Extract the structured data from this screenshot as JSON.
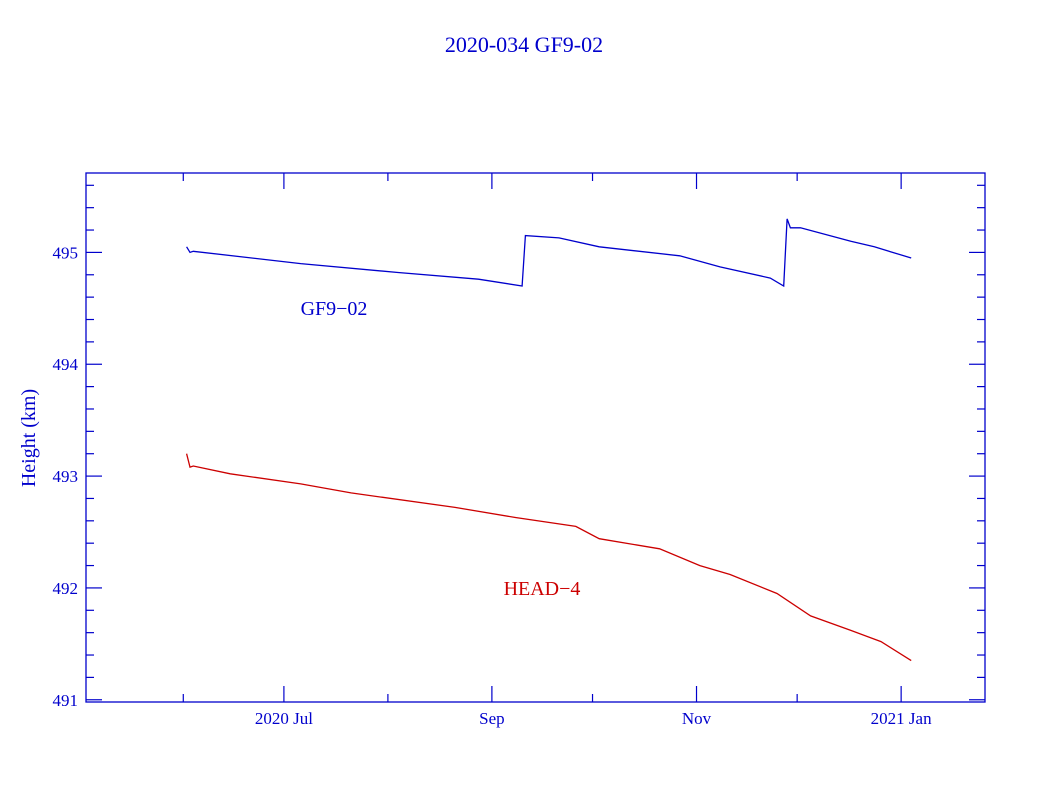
{
  "chart_data": {
    "type": "line",
    "title": "2020-034 GF9-02",
    "xlabel": "",
    "ylabel": "Height (km)",
    "xlim": [
      "2020-05-03",
      "2021-01-26"
    ],
    "ylim": [
      490.98,
      495.71
    ],
    "grid": false,
    "x_ticks": [
      {
        "date": "2020-07-01",
        "label": "2020 Jul"
      },
      {
        "date": "2020-09-01",
        "label": "Sep"
      },
      {
        "date": "2020-11-01",
        "label": "Nov"
      },
      {
        "date": "2021-01-01",
        "label": "2021 Jan"
      }
    ],
    "x_minor_ticks": [
      "2020-06-01",
      "2020-08-01",
      "2020-10-01",
      "2020-12-01"
    ],
    "y_ticks": [
      491,
      492,
      493,
      494,
      495
    ],
    "y_minor_step": 0.2,
    "colors": {
      "axis": "#0000cc",
      "gf9": "#0000cc",
      "head": "#cc0000"
    },
    "series": [
      {
        "name": "GF9-02",
        "label": "GF9−02",
        "color": "#0000cc",
        "points": [
          [
            "2020-06-02",
            495.05
          ],
          [
            "2020-06-03",
            495.0
          ],
          [
            "2020-06-04",
            495.01
          ],
          [
            "2020-07-06",
            494.9
          ],
          [
            "2020-08-04",
            494.82
          ],
          [
            "2020-08-28",
            494.76
          ],
          [
            "2020-09-10",
            494.7
          ],
          [
            "2020-09-11",
            495.15
          ],
          [
            "2020-09-21",
            495.13
          ],
          [
            "2020-10-03",
            495.05
          ],
          [
            "2020-10-27",
            494.97
          ],
          [
            "2020-11-08",
            494.87
          ],
          [
            "2020-11-23",
            494.77
          ],
          [
            "2020-11-27",
            494.7
          ],
          [
            "2020-11-28",
            495.3
          ],
          [
            "2020-11-29",
            495.22
          ],
          [
            "2020-12-02",
            495.22
          ],
          [
            "2020-12-17",
            495.1
          ],
          [
            "2020-12-24",
            495.05
          ],
          [
            "2021-01-04",
            494.95
          ]
        ]
      },
      {
        "name": "HEAD-4",
        "label": "HEAD−4",
        "color": "#cc0000",
        "points": [
          [
            "2020-06-02",
            493.2
          ],
          [
            "2020-06-03",
            493.08
          ],
          [
            "2020-06-04",
            493.09
          ],
          [
            "2020-06-15",
            493.02
          ],
          [
            "2020-07-06",
            492.93
          ],
          [
            "2020-07-21",
            492.85
          ],
          [
            "2020-08-21",
            492.72
          ],
          [
            "2020-09-08",
            492.63
          ],
          [
            "2020-09-26",
            492.55
          ],
          [
            "2020-10-03",
            492.44
          ],
          [
            "2020-10-21",
            492.35
          ],
          [
            "2020-11-02",
            492.2
          ],
          [
            "2020-11-11",
            492.12
          ],
          [
            "2020-11-25",
            491.95
          ],
          [
            "2020-12-05",
            491.75
          ],
          [
            "2020-12-17",
            491.62
          ],
          [
            "2020-12-26",
            491.52
          ],
          [
            "2021-01-04",
            491.35
          ]
        ]
      }
    ]
  }
}
